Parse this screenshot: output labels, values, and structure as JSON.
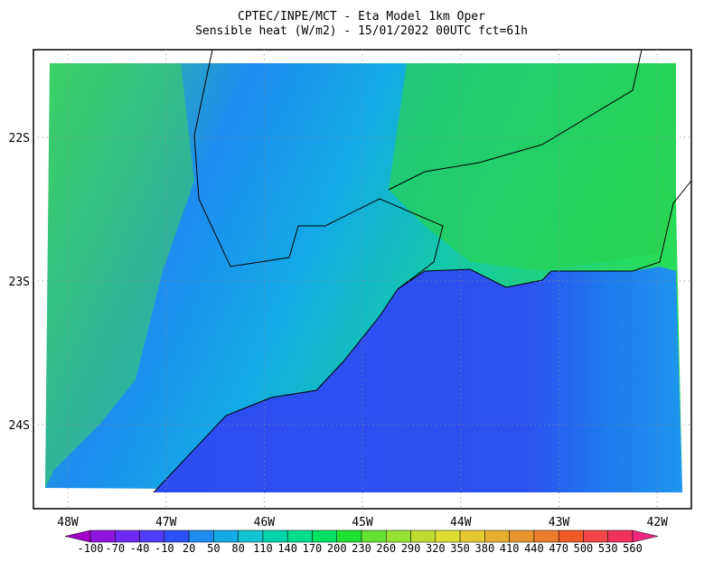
{
  "header": {
    "title": "CPTEC/INPE/MCT -  Eta Model 1km Oper",
    "subtitle": "Sensible heat (W/m2) - 15/01/2022 00UTC fct=61h"
  },
  "latitudes": [
    "22S",
    "23S",
    "24S"
  ],
  "longitudes": [
    "48W",
    "47W",
    "46W",
    "45W",
    "44W",
    "43W",
    "42W"
  ],
  "colorbar": {
    "labels": [
      "-100",
      "-70",
      "-40",
      "-10",
      "20",
      "50",
      "80",
      "110",
      "140",
      "170",
      "200",
      "230",
      "260",
      "290",
      "320",
      "350",
      "380",
      "410",
      "440",
      "470",
      "500",
      "530",
      "560"
    ],
    "colors": [
      "#a000c8",
      "#8c14dc",
      "#6e28f0",
      "#503cf5",
      "#2d50f5",
      "#1e8cf0",
      "#14aae6",
      "#14c3d2",
      "#00d2aa",
      "#00dc8c",
      "#00e164",
      "#1ee132",
      "#64e132",
      "#96e132",
      "#bedc32",
      "#dcdc32",
      "#e6c832",
      "#e6af2d",
      "#e6962d",
      "#eb7d2d",
      "#f05a28",
      "#f04646",
      "#f0325a",
      "#f0287d"
    ]
  }
}
